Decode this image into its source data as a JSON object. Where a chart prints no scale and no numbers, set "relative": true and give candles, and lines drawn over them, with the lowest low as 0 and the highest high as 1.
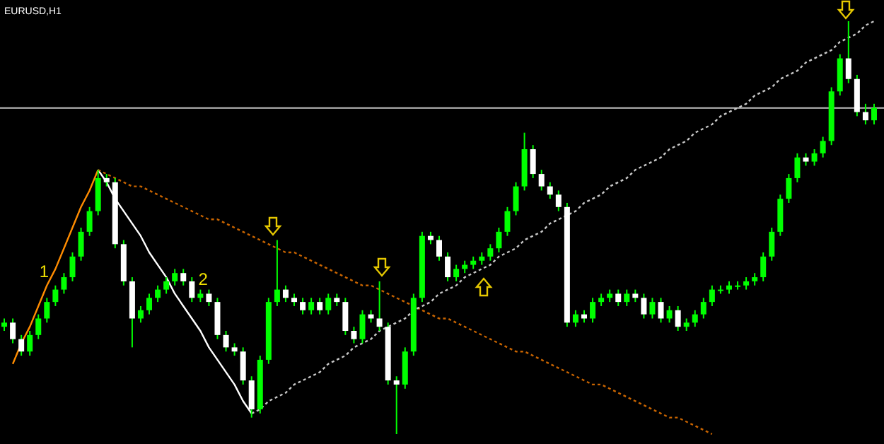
{
  "chart_data": {
    "type": "candlestick",
    "title": "EURUSD,H1",
    "relative": true,
    "color": "#00ff00",
    "colors": [
      "#00ff00",
      "#ffffff",
      "#ffffff",
      "#00ff00",
      "#00ff00",
      "#00ff00",
      "#00ff00",
      "#00ff00",
      "#00ff00",
      "#00ff00",
      "#00ff00",
      "#00ff00",
      "#ffffff",
      "#ffffff",
      "#ffffff",
      "#ffffff",
      "#00ff00",
      "#00ff00",
      "#00ff00",
      "#00ff00",
      "#00ff00",
      "#ffffff",
      "#ffffff",
      "#00ff00",
      "#ffffff",
      "#ffffff",
      "#ffffff",
      "#ffffff",
      "#ffffff",
      "#ffffff",
      "#00ff00",
      "#00ff00",
      "#00ff00",
      "#ffffff",
      "#ffffff",
      "#ffffff",
      "#00ff00",
      "#ffffff",
      "#00ff00",
      "#ffffff",
      "#ffffff",
      "#ffffff",
      "#00ff00",
      "#ffffff",
      "#ffffff",
      "#ffffff",
      "#ffffff",
      "#00ff00",
      "#00ff00",
      "#00ff00",
      "#ffffff",
      "#ffffff",
      "#ffffff",
      "#00ff00",
      "#00ff00",
      "#00ff00",
      "#00ff00",
      "#00ff00",
      "#00ff00",
      "#00ff00",
      "#00ff00",
      "#00ff00",
      "#ffffff",
      "#ffffff",
      "#ffffff",
      "#ffffff",
      "#ffffff",
      "#00ff00",
      "#ffffff",
      "#00ff00",
      "#00ff00",
      "#00ff00",
      "#ffffff",
      "#00ff00",
      "#ffffff",
      "#ffffff",
      "#00ff00",
      "#ffffff",
      "#00ff00",
      "#ffffff",
      "#00ff00",
      "#00ff00",
      "#00ff00",
      "#00ff00",
      "#00ff00",
      "#00ff00",
      "#00ff00",
      "#00ff00",
      "#00ff00",
      "#00ff00",
      "#00ff00",
      "#00ff00",
      "#00ff00",
      "#00ff00",
      "#ffffff",
      "#00ff00",
      "#00ff00",
      "#00ff00",
      "#00ff00",
      "#ffffff",
      "#ffffff",
      "#ffffff",
      "#00ff00"
    ],
    "categories": [
      null,
      null,
      null,
      null,
      null,
      null,
      null,
      null,
      null,
      null,
      null,
      null,
      null,
      null,
      null,
      null,
      null,
      null,
      null,
      null,
      null,
      null,
      null,
      null,
      null,
      null,
      null,
      null,
      null,
      null,
      null,
      null,
      null,
      null,
      null,
      null,
      null,
      null,
      null,
      null,
      null,
      null,
      null,
      null,
      null,
      null,
      null,
      null,
      null,
      null,
      null,
      null,
      null,
      null,
      null,
      null,
      null,
      null,
      null,
      null,
      null,
      null,
      null,
      null,
      null,
      null,
      null,
      null,
      null,
      null,
      null,
      null,
      null,
      null,
      null,
      null,
      null,
      null,
      null,
      null,
      null,
      null,
      null,
      null,
      null,
      null,
      null,
      null,
      null,
      null,
      null,
      null,
      null,
      null,
      null,
      null,
      null,
      null,
      null,
      null,
      null,
      null,
      null
    ],
    "ohlc": [
      [
        0.26,
        0.28,
        0.25,
        0.27
      ],
      [
        0.27,
        0.28,
        0.22,
        0.23
      ],
      [
        0.23,
        0.24,
        0.19,
        0.2
      ],
      [
        0.2,
        0.25,
        0.19,
        0.24
      ],
      [
        0.24,
        0.29,
        0.23,
        0.28
      ],
      [
        0.28,
        0.33,
        0.27,
        0.32
      ],
      [
        0.32,
        0.36,
        0.31,
        0.35
      ],
      [
        0.35,
        0.39,
        0.34,
        0.38
      ],
      [
        0.38,
        0.44,
        0.37,
        0.43
      ],
      [
        0.43,
        0.5,
        0.42,
        0.49
      ],
      [
        0.49,
        0.55,
        0.48,
        0.54
      ],
      [
        0.54,
        0.64,
        0.53,
        0.62
      ],
      [
        0.62,
        0.63,
        0.6,
        0.61
      ],
      [
        0.61,
        0.62,
        0.45,
        0.46
      ],
      [
        0.46,
        0.47,
        0.36,
        0.37
      ],
      [
        0.37,
        0.38,
        0.21,
        0.28
      ],
      [
        0.28,
        0.31,
        0.27,
        0.3
      ],
      [
        0.3,
        0.34,
        0.29,
        0.33
      ],
      [
        0.33,
        0.36,
        0.32,
        0.35
      ],
      [
        0.35,
        0.38,
        0.34,
        0.37
      ],
      [
        0.37,
        0.4,
        0.36,
        0.39
      ],
      [
        0.39,
        0.4,
        0.36,
        0.37
      ],
      [
        0.37,
        0.38,
        0.32,
        0.33
      ],
      [
        0.33,
        0.35,
        0.32,
        0.34
      ],
      [
        0.34,
        0.35,
        0.31,
        0.32
      ],
      [
        0.32,
        0.33,
        0.23,
        0.24
      ],
      [
        0.24,
        0.25,
        0.2,
        0.21
      ],
      [
        0.21,
        0.22,
        0.19,
        0.2
      ],
      [
        0.2,
        0.21,
        0.12,
        0.13
      ],
      [
        0.13,
        0.14,
        0.04,
        0.06
      ],
      [
        0.06,
        0.19,
        0.05,
        0.18
      ],
      [
        0.18,
        0.33,
        0.17,
        0.32
      ],
      [
        0.32,
        0.47,
        0.31,
        0.35
      ],
      [
        0.35,
        0.36,
        0.32,
        0.33
      ],
      [
        0.33,
        0.34,
        0.31,
        0.32
      ],
      [
        0.32,
        0.33,
        0.29,
        0.3
      ],
      [
        0.3,
        0.33,
        0.29,
        0.32
      ],
      [
        0.32,
        0.33,
        0.29,
        0.3
      ],
      [
        0.3,
        0.34,
        0.29,
        0.33
      ],
      [
        0.33,
        0.34,
        0.31,
        0.32
      ],
      [
        0.32,
        0.33,
        0.24,
        0.25
      ],
      [
        0.25,
        0.26,
        0.22,
        0.23
      ],
      [
        0.23,
        0.3,
        0.22,
        0.29
      ],
      [
        0.29,
        0.3,
        0.27,
        0.28
      ],
      [
        0.28,
        0.37,
        0.25,
        0.26
      ],
      [
        0.26,
        0.27,
        0.12,
        0.13
      ],
      [
        0.13,
        0.14,
        0,
        0.12
      ],
      [
        0.12,
        0.21,
        0.11,
        0.2
      ],
      [
        0.2,
        0.34,
        0.19,
        0.33
      ],
      [
        0.33,
        0.49,
        0.32,
        0.48
      ],
      [
        0.48,
        0.49,
        0.46,
        0.47
      ],
      [
        0.47,
        0.48,
        0.42,
        0.43
      ],
      [
        0.43,
        0.44,
        0.37,
        0.38
      ],
      [
        0.38,
        0.41,
        0.37,
        0.4
      ],
      [
        0.4,
        0.42,
        0.39,
        0.41
      ],
      [
        0.41,
        0.43,
        0.4,
        0.42
      ],
      [
        0.42,
        0.44,
        0.41,
        0.43
      ],
      [
        0.43,
        0.46,
        0.42,
        0.45
      ],
      [
        0.45,
        0.5,
        0.44,
        0.49
      ],
      [
        0.49,
        0.55,
        0.48,
        0.54
      ],
      [
        0.54,
        0.61,
        0.53,
        0.6
      ],
      [
        0.6,
        0.73,
        0.59,
        0.69
      ],
      [
        0.69,
        0.7,
        0.62,
        0.63
      ],
      [
        0.63,
        0.64,
        0.59,
        0.6
      ],
      [
        0.6,
        0.61,
        0.57,
        0.58
      ],
      [
        0.58,
        0.59,
        0.54,
        0.55
      ],
      [
        0.55,
        0.56,
        0.26,
        0.27
      ],
      [
        0.27,
        0.3,
        0.26,
        0.29
      ],
      [
        0.29,
        0.3,
        0.27,
        0.28
      ],
      [
        0.28,
        0.33,
        0.27,
        0.32
      ],
      [
        0.32,
        0.34,
        0.31,
        0.33
      ],
      [
        0.33,
        0.35,
        0.32,
        0.34
      ],
      [
        0.34,
        0.35,
        0.31,
        0.32
      ],
      [
        0.32,
        0.35,
        0.31,
        0.34
      ],
      [
        0.34,
        0.35,
        0.32,
        0.33
      ],
      [
        0.33,
        0.34,
        0.28,
        0.29
      ],
      [
        0.29,
        0.33,
        0.28,
        0.32
      ],
      [
        0.32,
        0.33,
        0.27,
        0.28
      ],
      [
        0.28,
        0.31,
        0.27,
        0.3
      ],
      [
        0.3,
        0.31,
        0.25,
        0.26
      ],
      [
        0.26,
        0.28,
        0.25,
        0.27
      ],
      [
        0.27,
        0.3,
        0.26,
        0.29
      ],
      [
        0.29,
        0.33,
        0.28,
        0.32
      ],
      [
        0.32,
        0.36,
        0.31,
        0.35
      ],
      [
        0.35,
        0.36,
        0.34,
        0.35
      ],
      [
        0.35,
        0.37,
        0.34,
        0.36
      ],
      [
        0.36,
        0.37,
        0.35,
        0.36
      ],
      [
        0.36,
        0.38,
        0.35,
        0.37
      ],
      [
        0.37,
        0.39,
        0.36,
        0.38
      ],
      [
        0.38,
        0.44,
        0.37,
        0.43
      ],
      [
        0.43,
        0.5,
        0.42,
        0.49
      ],
      [
        0.49,
        0.58,
        0.48,
        0.57
      ],
      [
        0.57,
        0.63,
        0.56,
        0.62
      ],
      [
        0.62,
        0.68,
        0.61,
        0.67
      ],
      [
        0.67,
        0.68,
        0.65,
        0.66
      ],
      [
        0.66,
        0.69,
        0.65,
        0.68
      ],
      [
        0.68,
        0.72,
        0.67,
        0.71
      ],
      [
        0.71,
        0.84,
        0.7,
        0.83
      ],
      [
        0.83,
        0.92,
        0.82,
        0.91
      ],
      [
        0.91,
        1,
        0.85,
        0.86
      ],
      [
        0.86,
        0.87,
        0.77,
        0.78
      ],
      [
        0.78,
        0.8,
        0.75,
        0.76
      ],
      [
        0.76,
        0.8,
        0.75,
        0.79
      ]
    ],
    "series": [
      {
        "type": "line",
        "color": "#ff8c00",
        "line_style": "solid",
        "values": [
          null,
          0.17,
          0.22,
          0.26,
          0.31,
          0.36,
          0.4,
          0.45,
          0.5,
          0.55,
          0.59,
          0.64,
          null,
          null,
          null,
          null,
          null,
          null,
          null,
          null,
          null,
          null,
          null,
          null,
          null,
          null,
          null,
          null,
          null,
          null,
          null,
          null,
          null,
          null,
          null,
          null,
          null,
          null,
          null,
          null,
          null,
          null,
          null,
          null,
          null,
          null,
          null,
          null,
          null,
          null,
          null,
          null,
          null,
          null,
          null,
          null,
          null,
          null,
          null,
          null,
          null,
          null,
          null,
          null,
          null,
          null,
          null,
          null,
          null,
          null,
          null,
          null,
          null,
          null,
          null,
          null,
          null,
          null,
          null,
          null,
          null,
          null,
          null,
          null,
          null,
          null,
          null,
          null,
          null,
          null,
          null,
          null,
          null,
          null,
          null,
          null,
          null,
          null,
          null,
          null,
          null,
          null,
          null
        ]
      },
      {
        "type": "line",
        "color": "#ffffff",
        "line_style": "solid",
        "values": [
          null,
          null,
          null,
          null,
          null,
          null,
          null,
          null,
          null,
          null,
          null,
          0.64,
          0.61,
          0.57,
          0.54,
          0.51,
          0.48,
          0.44,
          0.41,
          0.38,
          0.34,
          0.31,
          0.28,
          0.25,
          0.21,
          0.18,
          0.15,
          0.12,
          0.08,
          0.05,
          null,
          null,
          null,
          null,
          null,
          null,
          null,
          null,
          null,
          null,
          null,
          null,
          null,
          null,
          null,
          null,
          null,
          null,
          null,
          null,
          null,
          null,
          null,
          null,
          null,
          null,
          null,
          null,
          null,
          null,
          null,
          null,
          null,
          null,
          null,
          null,
          null,
          null,
          null,
          null,
          null,
          null,
          null,
          null,
          null,
          null,
          null,
          null,
          null,
          null,
          null,
          null,
          null,
          null,
          null,
          null,
          null,
          null,
          null,
          null,
          null,
          null,
          null,
          null,
          null,
          null,
          null,
          null,
          null,
          null,
          null,
          null,
          null
        ]
      },
      {
        "type": "line",
        "color": "#c86400",
        "line_style": "dotted",
        "values": [
          null,
          null,
          null,
          null,
          null,
          null,
          null,
          null,
          null,
          null,
          null,
          0.64,
          0.63,
          0.62,
          0.61,
          0.6,
          0.6,
          0.59,
          0.58,
          0.57,
          0.56,
          0.55,
          0.54,
          0.53,
          0.52,
          0.52,
          0.51,
          0.5,
          0.49,
          0.48,
          0.47,
          0.46,
          0.45,
          0.44,
          0.44,
          0.43,
          0.42,
          0.41,
          0.4,
          0.39,
          0.38,
          0.37,
          0.36,
          0.36,
          0.35,
          0.34,
          0.33,
          0.32,
          0.31,
          0.3,
          0.29,
          0.28,
          0.28,
          0.27,
          0.26,
          0.25,
          0.24,
          0.23,
          0.22,
          0.21,
          0.2,
          0.2,
          0.19,
          0.18,
          0.17,
          0.16,
          0.15,
          0.14,
          0.13,
          0.12,
          0.12,
          0.11,
          0.1,
          0.09,
          0.08,
          0.07,
          0.06,
          0.05,
          0.04,
          0.04,
          0.03,
          0.02,
          0.01,
          0,
          null,
          null,
          null,
          null,
          null,
          null,
          null,
          null,
          null,
          null,
          null,
          null,
          null,
          null,
          null,
          null,
          null,
          null,
          null
        ]
      },
      {
        "type": "line",
        "color": "#c8c8c8",
        "line_style": "dotted",
        "values": [
          null,
          null,
          null,
          null,
          null,
          null,
          null,
          null,
          null,
          null,
          null,
          null,
          null,
          null,
          null,
          null,
          null,
          null,
          null,
          null,
          null,
          null,
          null,
          null,
          null,
          null,
          null,
          null,
          null,
          0.05,
          0.06,
          0.08,
          0.09,
          0.1,
          0.12,
          0.13,
          0.14,
          0.15,
          0.17,
          0.18,
          0.19,
          0.21,
          0.22,
          0.23,
          0.25,
          0.26,
          0.27,
          0.28,
          0.3,
          0.31,
          0.32,
          0.34,
          0.35,
          0.36,
          0.38,
          0.39,
          0.4,
          0.41,
          0.43,
          0.44,
          0.45,
          0.47,
          0.48,
          0.49,
          0.51,
          0.52,
          0.53,
          0.54,
          0.56,
          0.57,
          0.58,
          0.6,
          0.61,
          0.62,
          0.64,
          0.65,
          0.66,
          0.67,
          0.69,
          0.7,
          0.71,
          0.73,
          0.74,
          0.75,
          0.77,
          0.78,
          0.79,
          0.8,
          0.82,
          0.83,
          0.84,
          0.86,
          0.87,
          0.88,
          0.9,
          0.91,
          0.92,
          0.93,
          0.95,
          0.96,
          0.97,
          0.99,
          1.0
        ]
      }
    ],
    "ref_lines": [
      {
        "axis": "y",
        "value": 0.79,
        "color": "#c0c0c0"
      }
    ],
    "annotations": [
      "1",
      "2"
    ]
  }
}
